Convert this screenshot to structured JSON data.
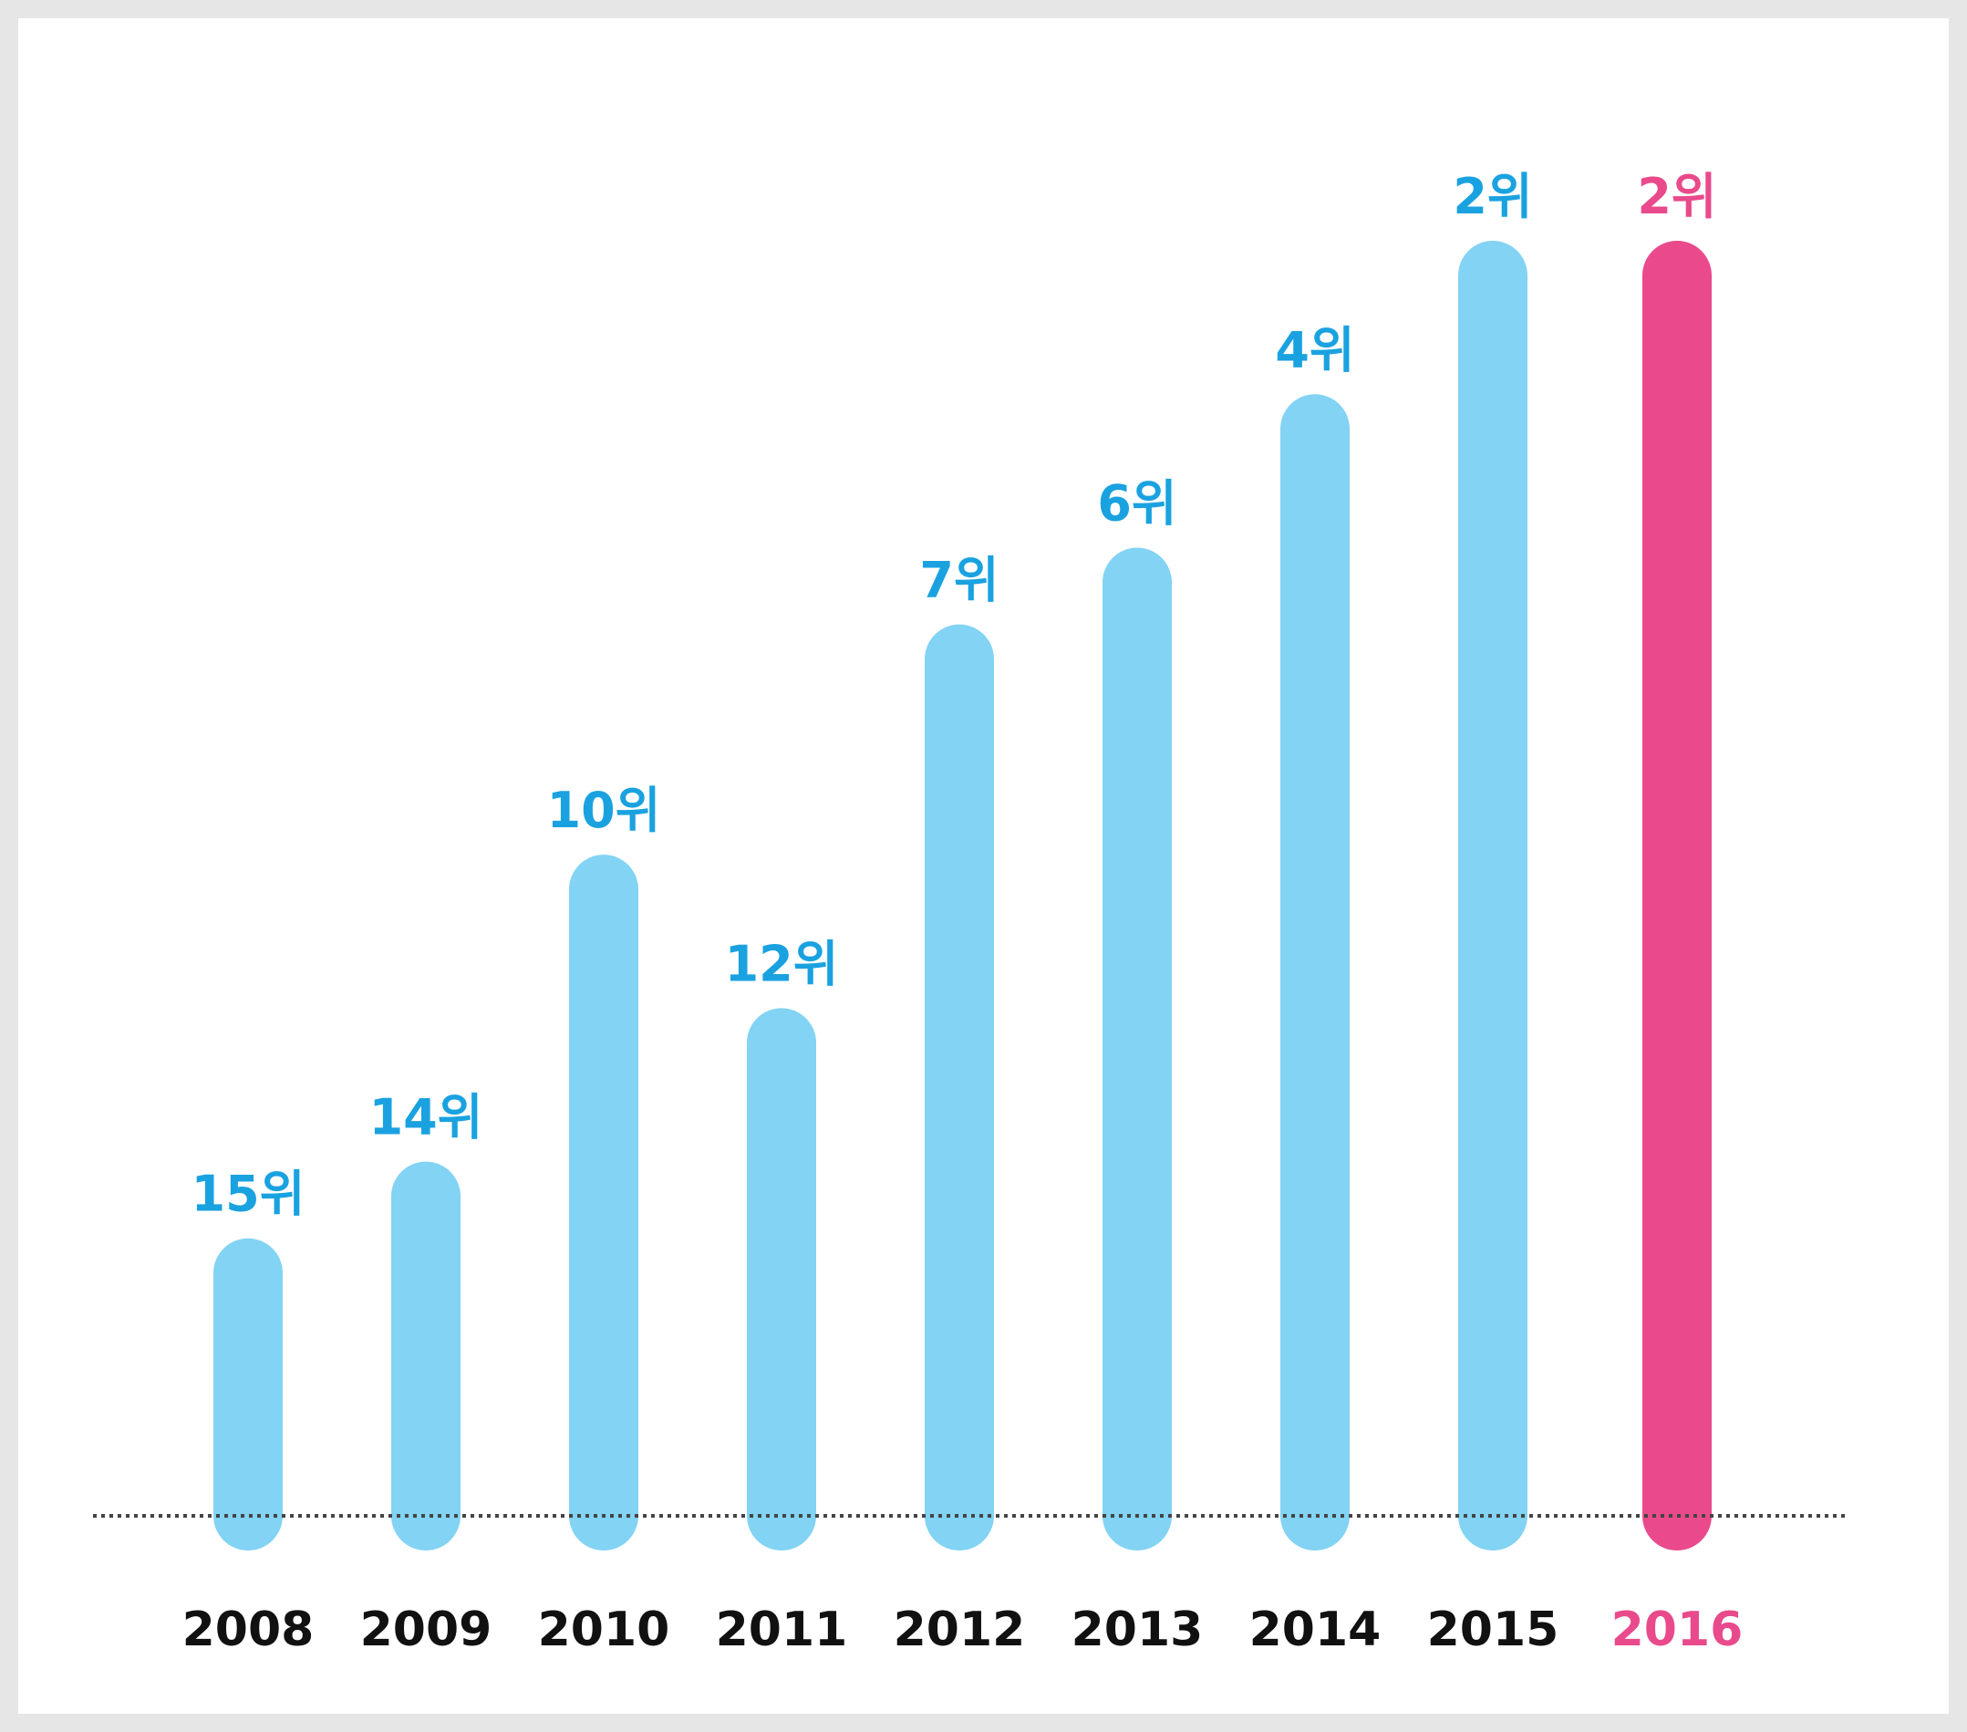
{
  "chart_data": {
    "type": "bar",
    "categories": [
      "2008",
      "2009",
      "2010",
      "2011",
      "2012",
      "2013",
      "2014",
      "2015",
      "2016"
    ],
    "values": [
      15,
      14,
      10,
      12,
      7,
      6,
      4,
      2,
      2
    ],
    "value_labels": [
      "15위",
      "14위",
      "10위",
      "12위",
      "7위",
      "6위",
      "4위",
      "2위",
      "2위"
    ],
    "value_unit": "위",
    "y_inverted": true,
    "ylim": [
      17,
      2
    ],
    "title": "",
    "xlabel": "",
    "ylabel": "",
    "grid": false,
    "baseline_style": "dotted",
    "colors": {
      "bar": "#82d3f4",
      "highlight_bar": "#ea4a8c",
      "label": "#1aa2e0",
      "highlight_label": "#e94a8b",
      "tick": "#111111",
      "baseline": "#444444"
    },
    "highlight_category": "2016"
  }
}
